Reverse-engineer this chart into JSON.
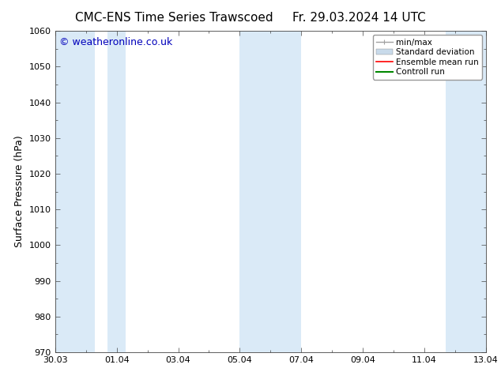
{
  "title": "CMC-ENS Time Series Trawscoed",
  "title_right": "Fr. 29.03.2024 14 UTC",
  "ylabel": "Surface Pressure (hPa)",
  "ylim": [
    970,
    1060
  ],
  "yticks": [
    970,
    980,
    990,
    1000,
    1010,
    1020,
    1030,
    1040,
    1050,
    1060
  ],
  "xlim_start": 0,
  "xlim_end": 14,
  "xtick_labels": [
    "30.03",
    "01.04",
    "03.04",
    "05.04",
    "07.04",
    "09.04",
    "11.04",
    "13.04"
  ],
  "xtick_positions": [
    0,
    2,
    4,
    6,
    8,
    10,
    12,
    14
  ],
  "background_color": "#ffffff",
  "plot_bg_color": "#ffffff",
  "shaded_regions": [
    {
      "x_start": 0.0,
      "x_end": 1.3
    },
    {
      "x_start": 1.7,
      "x_end": 2.3
    },
    {
      "x_start": 6.0,
      "x_end": 8.0
    },
    {
      "x_start": 12.7,
      "x_end": 14.0
    }
  ],
  "shaded_color": "#daeaf7",
  "watermark_text": "© weatheronline.co.uk",
  "watermark_color": "#0000bb",
  "legend_items": [
    {
      "label": "min/max",
      "color": "#a0a0a0",
      "lw": 1.0,
      "style": "error"
    },
    {
      "label": "Standard deviation",
      "color": "#c8daea",
      "lw": 5,
      "style": "bar"
    },
    {
      "label": "Ensemble mean run",
      "color": "#ff0000",
      "lw": 1.2,
      "style": "line"
    },
    {
      "label": "Controll run",
      "color": "#008800",
      "lw": 1.5,
      "style": "line"
    }
  ],
  "title_fontsize": 11,
  "axis_label_fontsize": 9,
  "tick_fontsize": 8,
  "watermark_fontsize": 9,
  "legend_fontsize": 7.5
}
